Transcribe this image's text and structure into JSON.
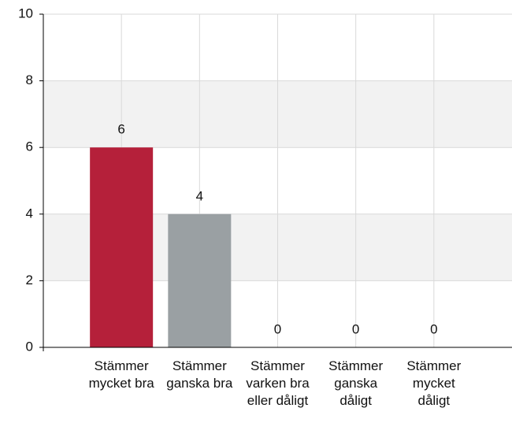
{
  "chart_data": {
    "type": "bar",
    "categories": [
      "Stämmer mycket bra",
      "Stämmer ganska bra",
      "Stämmer varken bra eller dåligt",
      "Stämmer ganska dåligt",
      "Stämmer mycket dåligt"
    ],
    "values": [
      6,
      4,
      0,
      0,
      0
    ],
    "colors": [
      "#b5203a",
      "#9aa0a3"
    ],
    "ylim": [
      0,
      10
    ],
    "yticks": [
      0,
      2,
      4,
      6,
      8,
      10
    ],
    "grid": true,
    "bands": true
  }
}
